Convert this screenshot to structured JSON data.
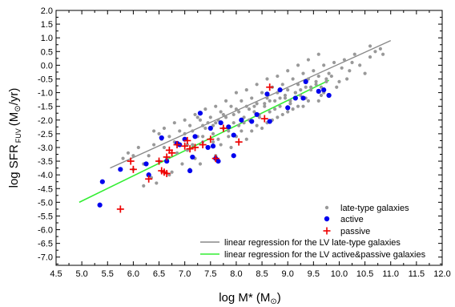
{
  "chart_data": {
    "type": "scatter",
    "xlabel": {
      "main": "log M* (M",
      "sun": "⊙",
      "close": ")"
    },
    "ylabel": {
      "main": "log SFR",
      "sub": "FUV",
      "units_open": "(M",
      "sun": "⊙",
      "units_close": "/yr)"
    },
    "xlim": [
      4.5,
      12.0
    ],
    "ylim": [
      -7.3,
      2.0
    ],
    "x_ticks": [
      "4.5",
      "5.0",
      "5.5",
      "6.0",
      "6.5",
      "7.0",
      "7.5",
      "8.0",
      "8.5",
      "9.0",
      "9.5",
      "10.0",
      "10.5",
      "11.0",
      "11.5",
      "12.0"
    ],
    "y_ticks": [
      "2.0",
      "1.5",
      "1.0",
      "0.5",
      "0.0",
      "-0.5",
      "-1.0",
      "-1.5",
      "-2.0",
      "-2.5",
      "-3.0",
      "-3.5",
      "-4.0",
      "-4.5",
      "-5.0",
      "-5.5",
      "-6.0",
      "-6.5",
      "-7.0"
    ],
    "legend_position": "bottom-right",
    "legend": [
      {
        "label": "late-type galaxies",
        "marker": "small-circle",
        "color": "#999999"
      },
      {
        "label": "active",
        "marker": "circle",
        "color": "#0000ee"
      },
      {
        "label": "passive",
        "marker": "plus",
        "color": "#ee0000"
      },
      {
        "label": "linear regression for the LV late-type galaxies",
        "marker": "line",
        "color": "#888888"
      },
      {
        "label": "linear regression for the LV active&passive galaxies",
        "marker": "line",
        "color": "#33ee33"
      }
    ],
    "series": [
      {
        "name": "late-type galaxies",
        "color": "#999999",
        "points": [
          [
            5.9,
            -3.2
          ],
          [
            6.0,
            -3.8
          ],
          [
            6.1,
            -3.0
          ],
          [
            6.2,
            -3.6
          ],
          [
            6.3,
            -3.3
          ],
          [
            6.35,
            -4.1
          ],
          [
            6.4,
            -2.9
          ],
          [
            6.45,
            -4.3
          ],
          [
            6.5,
            -3.5
          ],
          [
            6.55,
            -2.7
          ],
          [
            6.6,
            -3.0
          ],
          [
            6.65,
            -3.4
          ],
          [
            6.7,
            -2.6
          ],
          [
            6.75,
            -3.9
          ],
          [
            6.8,
            -2.8
          ],
          [
            6.85,
            -3.2
          ],
          [
            6.9,
            -2.4
          ],
          [
            6.95,
            -3.6
          ],
          [
            7.0,
            -2.5
          ],
          [
            7.05,
            -3.1
          ],
          [
            7.1,
            -2.2
          ],
          [
            7.15,
            -2.9
          ],
          [
            7.2,
            -3.4
          ],
          [
            7.25,
            -2.6
          ],
          [
            7.3,
            -2.0
          ],
          [
            7.35,
            -2.8
          ],
          [
            7.4,
            -2.3
          ],
          [
            7.45,
            -3.0
          ],
          [
            7.5,
            -1.9
          ],
          [
            7.55,
            -2.5
          ],
          [
            7.6,
            -2.1
          ],
          [
            7.65,
            -2.7
          ],
          [
            7.7,
            -1.7
          ],
          [
            7.75,
            -2.3
          ],
          [
            7.8,
            -1.9
          ],
          [
            7.85,
            -2.4
          ],
          [
            7.9,
            -1.5
          ],
          [
            7.95,
            -2.1
          ],
          [
            8.0,
            -1.6
          ],
          [
            8.05,
            -2.2
          ],
          [
            8.1,
            -1.3
          ],
          [
            8.15,
            -1.9
          ],
          [
            8.2,
            -1.5
          ],
          [
            8.25,
            -2.0
          ],
          [
            8.3,
            -1.2
          ],
          [
            8.35,
            -1.7
          ],
          [
            8.4,
            -1.4
          ],
          [
            8.45,
            -1.9
          ],
          [
            8.5,
            -1.0
          ],
          [
            8.55,
            -1.5
          ],
          [
            8.6,
            -1.2
          ],
          [
            8.65,
            -1.7
          ],
          [
            8.7,
            -0.8
          ],
          [
            8.75,
            -1.3
          ],
          [
            8.8,
            -1.0
          ],
          [
            8.85,
            -1.5
          ],
          [
            8.9,
            -0.7
          ],
          [
            8.95,
            -1.2
          ],
          [
            9.0,
            -0.9
          ],
          [
            9.05,
            -1.3
          ],
          [
            9.1,
            -0.5
          ],
          [
            9.15,
            -1.0
          ],
          [
            9.2,
            -0.7
          ],
          [
            9.25,
            -1.1
          ],
          [
            9.3,
            -0.3
          ],
          [
            9.35,
            -0.8
          ],
          [
            9.4,
            -0.5
          ],
          [
            9.45,
            -0.9
          ],
          [
            9.5,
            -0.2
          ],
          [
            9.55,
            -0.6
          ],
          [
            9.6,
            -0.4
          ],
          [
            9.65,
            -0.8
          ],
          [
            9.7,
            0.0
          ],
          [
            9.75,
            -0.5
          ],
          [
            9.8,
            -0.3
          ],
          [
            9.9,
            0.1
          ],
          [
            10.0,
            -0.6
          ],
          [
            10.1,
            0.2
          ],
          [
            10.2,
            -0.2
          ],
          [
            10.3,
            0.4
          ],
          [
            10.4,
            0.0
          ],
          [
            10.6,
            0.3
          ],
          [
            10.7,
            0.5
          ],
          [
            10.8,
            0.6
          ],
          [
            10.85,
            0.4
          ],
          [
            7.0,
            -2.0
          ],
          [
            7.2,
            -1.8
          ],
          [
            7.4,
            -1.6
          ],
          [
            7.6,
            -1.5
          ],
          [
            7.8,
            -1.3
          ],
          [
            8.0,
            -1.0
          ],
          [
            8.2,
            -0.9
          ],
          [
            8.4,
            -0.7
          ],
          [
            8.6,
            -0.5
          ],
          [
            8.8,
            -0.4
          ],
          [
            9.0,
            -0.2
          ],
          [
            9.2,
            0.0
          ],
          [
            9.4,
            0.2
          ],
          [
            9.6,
            0.4
          ],
          [
            6.4,
            -2.4
          ],
          [
            6.6,
            -2.3
          ],
          [
            6.8,
            -2.1
          ],
          [
            7.3,
            -3.6
          ],
          [
            7.6,
            -3.3
          ],
          [
            7.9,
            -3.0
          ],
          [
            8.2,
            -2.7
          ],
          [
            8.5,
            -2.3
          ],
          [
            8.8,
            -1.9
          ],
          [
            9.1,
            -1.6
          ],
          [
            9.4,
            -1.3
          ],
          [
            9.7,
            -1.0
          ],
          [
            6.2,
            -4.4
          ],
          [
            6.7,
            -4.0
          ],
          [
            7.1,
            -3.8
          ],
          [
            7.7,
            -2.9
          ],
          [
            8.0,
            -2.6
          ],
          [
            8.3,
            -2.4
          ],
          [
            8.6,
            -2.1
          ],
          [
            8.9,
            -1.8
          ],
          [
            9.2,
            -1.5
          ],
          [
            5.8,
            -3.4
          ],
          [
            6.0,
            -3.3
          ],
          [
            6.5,
            -2.5
          ],
          [
            7.25,
            -1.9
          ],
          [
            7.45,
            -2.1
          ],
          [
            7.75,
            -1.8
          ],
          [
            8.05,
            -1.7
          ],
          [
            8.35,
            -1.5
          ],
          [
            8.65,
            -1.3
          ],
          [
            8.95,
            -1.1
          ],
          [
            9.25,
            -0.9
          ],
          [
            9.55,
            -0.7
          ],
          [
            9.85,
            -0.4
          ],
          [
            7.35,
            -2.2
          ],
          [
            7.65,
            -2.0
          ],
          [
            7.95,
            -1.8
          ],
          [
            8.25,
            -1.6
          ],
          [
            8.55,
            -1.4
          ],
          [
            8.85,
            -1.2
          ],
          [
            9.15,
            -1.0
          ],
          [
            9.45,
            -0.8
          ],
          [
            9.75,
            -0.6
          ],
          [
            7.15,
            -2.4
          ],
          [
            7.55,
            -2.2
          ],
          [
            8.15,
            -2.1
          ],
          [
            8.45,
            -1.8
          ],
          [
            8.75,
            -1.6
          ],
          [
            9.05,
            -1.4
          ],
          [
            9.35,
            -1.2
          ],
          [
            9.65,
            -1.1
          ],
          [
            10.05,
            -0.1
          ],
          [
            10.25,
            0.1
          ],
          [
            10.5,
            -0.3
          ],
          [
            10.6,
            0.7
          ],
          [
            9.95,
            -0.8
          ],
          [
            10.15,
            -0.5
          ],
          [
            7.05,
            -2.9
          ],
          [
            7.35,
            -2.6
          ],
          [
            7.55,
            -2.8
          ],
          [
            7.85,
            -2.6
          ],
          [
            8.1,
            -2.4
          ],
          [
            8.4,
            -2.2
          ],
          [
            8.7,
            -2.0
          ],
          [
            9.0,
            -1.7
          ],
          [
            9.3,
            -1.5
          ],
          [
            9.6,
            -1.3
          ]
        ]
      },
      {
        "name": "active",
        "color": "#0000ee",
        "points": [
          [
            5.35,
            -5.1
          ],
          [
            5.4,
            -4.25
          ],
          [
            5.75,
            -3.8
          ],
          [
            6.25,
            -3.6
          ],
          [
            6.3,
            -4.0
          ],
          [
            6.55,
            -2.65
          ],
          [
            6.65,
            -3.5
          ],
          [
            6.85,
            -2.85
          ],
          [
            6.9,
            -2.9
          ],
          [
            7.0,
            -2.7
          ],
          [
            7.1,
            -3.85
          ],
          [
            7.15,
            -3.35
          ],
          [
            7.2,
            -2.6
          ],
          [
            7.3,
            -1.75
          ],
          [
            7.45,
            -3.0
          ],
          [
            7.5,
            -2.3
          ],
          [
            7.55,
            -2.95
          ],
          [
            7.6,
            -3.4
          ],
          [
            7.65,
            -3.5
          ],
          [
            7.7,
            -2.1
          ],
          [
            7.85,
            -2.25
          ],
          [
            7.95,
            -3.3
          ],
          [
            8.1,
            -2.0
          ],
          [
            8.3,
            -2.05
          ],
          [
            8.4,
            -1.8
          ],
          [
            8.65,
            -2.05
          ],
          [
            8.85,
            -0.9
          ],
          [
            9.0,
            -1.55
          ],
          [
            9.15,
            -1.2
          ],
          [
            9.3,
            -1.2
          ],
          [
            9.35,
            -0.6
          ],
          [
            9.6,
            -0.95
          ],
          [
            9.7,
            -0.9
          ],
          [
            9.8,
            -1.1
          ],
          [
            8.6,
            -1.05
          ],
          [
            7.95,
            -2.55
          ]
        ]
      },
      {
        "name": "passive",
        "color": "#ee0000",
        "points": [
          [
            5.75,
            -5.25
          ],
          [
            5.95,
            -3.5
          ],
          [
            6.0,
            -3.8
          ],
          [
            6.3,
            -4.15
          ],
          [
            6.5,
            -3.5
          ],
          [
            6.55,
            -3.85
          ],
          [
            6.6,
            -3.9
          ],
          [
            6.65,
            -3.95
          ],
          [
            6.65,
            -3.35
          ],
          [
            6.7,
            -3.1
          ],
          [
            6.75,
            -3.2
          ],
          [
            6.85,
            -2.9
          ],
          [
            7.0,
            -2.95
          ],
          [
            7.05,
            -2.75
          ],
          [
            7.1,
            -3.05
          ],
          [
            7.2,
            -3.0
          ],
          [
            7.35,
            -2.9
          ],
          [
            7.5,
            -2.7
          ],
          [
            7.6,
            -3.4
          ],
          [
            7.75,
            -2.3
          ],
          [
            8.05,
            -2.8
          ],
          [
            8.55,
            -1.95
          ],
          [
            8.65,
            -0.8
          ]
        ]
      }
    ],
    "regression_lines": [
      {
        "name": "linear regression for the LV late-type galaxies",
        "color": "#888888",
        "from": [
          5.55,
          -3.75
        ],
        "to": [
          11.0,
          0.9
        ]
      },
      {
        "name": "linear regression for the LV active&passive galaxies",
        "color": "#33ee33",
        "from": [
          4.95,
          -5.0
        ],
        "to": [
          9.8,
          -0.55
        ]
      }
    ]
  }
}
